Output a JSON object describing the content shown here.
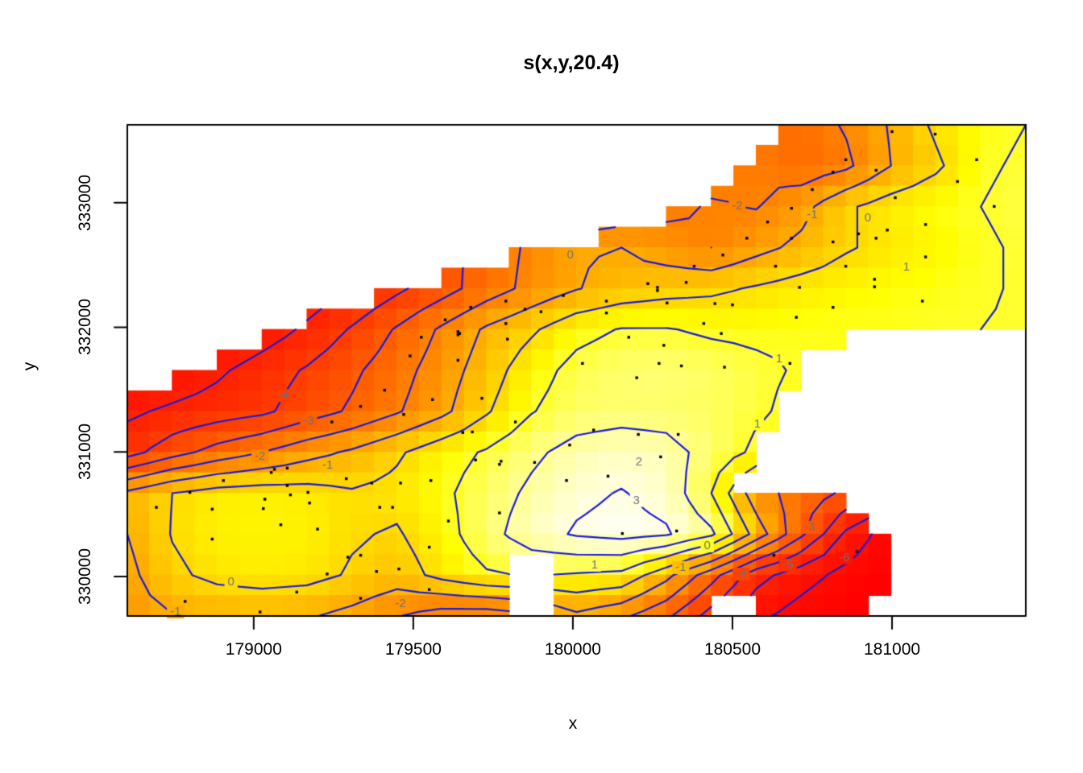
{
  "chart_data": {
    "type": "heatmap",
    "title": "s(x,y,20.4)",
    "xlabel": "x",
    "ylabel": "y",
    "xlim": [
      178604,
      181419
    ],
    "ylim": [
      329683,
      333625
    ],
    "x_ticks": {
      "values": [
        179000,
        179500,
        180000,
        180500,
        181000
      ],
      "labels": [
        "179000",
        "179500",
        "180000",
        "180500",
        "181000"
      ]
    },
    "y_ticks": {
      "values": [
        330000,
        331000,
        332000,
        333000
      ],
      "labels": [
        "330000",
        "331000",
        "332000",
        "333000"
      ]
    },
    "grid": {
      "nx": 21,
      "ny": 13,
      "x0": 178604,
      "x1": 181419,
      "y_top": 333625,
      "y_bottom": 329683,
      "values": [
        [
          -9.0,
          -8.6,
          -8.2,
          -7.8,
          -7.4,
          -7.0,
          -6.6,
          -6.2,
          -5.8,
          -5.4,
          -5.0,
          -4.5,
          -3.8,
          -3.0,
          -2.5,
          -2.5,
          -1.9,
          -0.9,
          0.2,
          0.8,
          1.0
        ],
        [
          -8.8,
          -8.4,
          -8.0,
          -7.6,
          -7.2,
          -6.8,
          -6.3,
          -5.8,
          -5.3,
          -4.8,
          -4.3,
          -3.7,
          -3.0,
          -2.4,
          -2.1,
          -2.6,
          -2.2,
          -1.0,
          -0.2,
          0.9,
          1.1
        ],
        [
          -8.2,
          -7.8,
          -7.4,
          -7.0,
          -6.6,
          -6.2,
          -5.7,
          -5.2,
          -4.7,
          -4.1,
          -3.5,
          -2.9,
          -2.3,
          -1.9,
          -2.05,
          -1.35,
          -0.15,
          0.45,
          0.8,
          1.0,
          1.2
        ],
        [
          -7.0,
          -6.6,
          -6.2,
          -5.8,
          -5.3,
          -4.8,
          -4.2,
          -3.4,
          -2.6,
          -1.8,
          -1.1,
          -1.0,
          -1.5,
          -2.0,
          -1.3,
          -0.75,
          -0.1,
          0.3,
          0.6,
          0.9,
          1.1
        ],
        [
          -7.9,
          -7.4,
          -6.9,
          -6.3,
          -5.7,
          -5.0,
          -4.2,
          -3.4,
          -2.5,
          -1.7,
          -1.05,
          -0.6,
          -0.35,
          -0.2,
          0.1,
          0.4,
          0.6,
          0.75,
          0.85,
          0.95,
          1.05
        ],
        [
          -7.6,
          -7.0,
          -6.3,
          -5.6,
          -4.8,
          -3.9,
          -2.9,
          -1.85,
          -0.85,
          -0.15,
          0.7,
          1.05,
          1.05,
          0.85,
          0.8,
          0.9,
          0.9,
          0.9,
          0.95,
          1.0,
          1.05
        ],
        [
          -6.4,
          -5.8,
          -5.2,
          -4.5,
          -3.9,
          -3.2,
          -2.4,
          -1.5,
          -0.5,
          0.6,
          1.3,
          1.6,
          1.7,
          1.5,
          1.2,
          0.9,
          0.6,
          0.4,
          0.3,
          0.2,
          0.1
        ],
        [
          -5.2,
          -4.8,
          -4.5,
          -4.2,
          -3.5,
          -2.85,
          -2.1,
          -1.25,
          -0.1,
          0.95,
          1.5,
          1.6,
          1.55,
          1.45,
          1.15,
          0.7,
          0.4,
          0.3,
          0.2,
          0.1,
          0.0
        ],
        [
          -4.4,
          -3.4,
          -2.6,
          -2.0,
          -1.35,
          -0.85,
          -0.15,
          0.6,
          1.1,
          1.8,
          2.35,
          2.6,
          2.4,
          1.6,
          0.8,
          0.2,
          -0.6,
          -1.4,
          -2.2,
          -3.0,
          -3.8
        ],
        [
          -0.8,
          0.0,
          0.4,
          0.5,
          0.4,
          0.1,
          0.3,
          0.8,
          1.5,
          2.2,
          2.8,
          3.05,
          2.7,
          1.0,
          -1.6,
          -2.4,
          -3.2,
          -4.0,
          -4.8,
          -5.6,
          -6.4
        ],
        [
          -1.0,
          0.05,
          0.5,
          0.55,
          0.5,
          0.1,
          -0.1,
          0.6,
          1.6,
          2.6,
          3.1,
          3.3,
          3.1,
          2.2,
          -0.4,
          -2.8,
          -5.2,
          -6.6,
          -7.5,
          -8.5,
          -9.5
        ],
        [
          -1.3,
          -0.2,
          0.25,
          0.4,
          0.3,
          -0.1,
          -0.5,
          0.3,
          0.9,
          1.05,
          0.9,
          0.75,
          -0.7,
          -2.6,
          -4.6,
          -5.6,
          -6.3,
          -6.9,
          -7.6,
          -8.3,
          -9.0
        ],
        [
          -1.5,
          -1.05,
          -0.85,
          -0.8,
          -0.9,
          -1.3,
          -1.95,
          -2.5,
          -2.6,
          -2.2,
          -1.2,
          -1.8,
          -2.8,
          -4.4,
          -5.8,
          -6.4,
          -6.8,
          -7.4,
          -8.0,
          -8.6,
          -9.2
        ]
      ]
    },
    "mask_cols": 40,
    "mask_rows": 24,
    "mask": [
      "0000000000000000000000000000011111111111",
      "0000000000000000000000000000111111111111",
      "0000000000000000000000000001111111111111",
      "0000000000000000000000000011111111111111",
      "0000000000000000000000001111111111111111",
      "0000000000000000000001111111111111111111",
      "0000000000000000011111111111111111111111",
      "0000000000000011111111111111111111111111",
      "0000000000011111111111111111111111111111",
      "0000000011111111111111111111111111111111",
      "0000001111111111111111111111111100000000",
      "0000111111111111111111111111110000000000",
      "0011111111111111111111111111110000000000",
      "1111111111111111111111111111100000000000",
      "1111111111111111111111111111100000000000",
      "1111111111111111111111111111000000000000",
      "1111111111111111111111111111000000000000",
      "1111111111111111111111111110000000000000",
      "1111111111111111111111111111111100000000",
      "1111111111111111111111111111111110000000",
      "1111111111111111111111111111111111000000",
      "1111111111111111100111111111111111000000",
      "1111111111111111100111111111111111000000",
      "1111111111111111100111111100111110000000"
    ],
    "contours": {
      "levels": [
        -6,
        -5,
        -4,
        -3,
        -2,
        -1,
        0,
        1,
        2,
        3
      ],
      "line_color": "#1a1ae0",
      "label_color": "#70707a"
    },
    "contour_labels": [
      {
        "text": "-2",
        "x": 180515,
        "y": 332975
      },
      {
        "text": "-1",
        "x": 180750,
        "y": 332903
      },
      {
        "text": "0",
        "x": 180924,
        "y": 332877
      },
      {
        "text": "1",
        "x": 181045,
        "y": 332482
      },
      {
        "text": "0",
        "x": 179992,
        "y": 332579
      },
      {
        "text": "-4",
        "x": 179093,
        "y": 331452
      },
      {
        "text": "-3",
        "x": 179172,
        "y": 331251
      },
      {
        "text": "-2",
        "x": 179020,
        "y": 330966
      },
      {
        "text": "-1",
        "x": 179232,
        "y": 330894
      },
      {
        "text": "1",
        "x": 180646,
        "y": 331743
      },
      {
        "text": "1",
        "x": 180578,
        "y": 331225
      },
      {
        "text": "2",
        "x": 180207,
        "y": 330920
      },
      {
        "text": "3",
        "x": 180199,
        "y": 330609
      },
      {
        "text": "0",
        "x": 178929,
        "y": 329955
      },
      {
        "text": "-1",
        "x": 178755,
        "y": 329715
      },
      {
        "text": "-2",
        "x": 179460,
        "y": 329780
      },
      {
        "text": "1",
        "x": 180068,
        "y": 330091
      },
      {
        "text": "-1",
        "x": 180338,
        "y": 330071
      },
      {
        "text": "0",
        "x": 180421,
        "y": 330246
      },
      {
        "text": "-3",
        "x": 180742,
        "y": 330395
      },
      {
        "text": "-4",
        "x": 180527,
        "y": 330019
      },
      {
        "text": "-5",
        "x": 180674,
        "y": 330091
      },
      {
        "text": "-6",
        "x": 180851,
        "y": 330149
      }
    ],
    "palette": {
      "vmin": -7.2,
      "vmax": 3.4,
      "low": "#ff0000",
      "mid": "#ffff00",
      "high": "#ffffff",
      "na": "#ffffff"
    },
    "point_color": "#000000",
    "points": [
      [
        181000,
        333570
      ],
      [
        181135,
        333550
      ],
      [
        180855,
        333345
      ],
      [
        181265,
        333345
      ],
      [
        180950,
        333260
      ],
      [
        181010,
        333040
      ],
      [
        180750,
        333105
      ],
      [
        181205,
        333170
      ],
      [
        180815,
        333245
      ],
      [
        180685,
        332955
      ],
      [
        180610,
        332845
      ],
      [
        180895,
        332750
      ],
      [
        180985,
        332780
      ],
      [
        180950,
        332715
      ],
      [
        180815,
        332685
      ],
      [
        181320,
        332970
      ],
      [
        181105,
        332825
      ],
      [
        180545,
        332715
      ],
      [
        180685,
        332715
      ],
      [
        180470,
        332580
      ],
      [
        180855,
        332490
      ],
      [
        180635,
        332490
      ],
      [
        180945,
        332385
      ],
      [
        181105,
        332565
      ],
      [
        180380,
        332490
      ],
      [
        180265,
        332320
      ],
      [
        180355,
        332360
      ],
      [
        180500,
        332180
      ],
      [
        180710,
        332320
      ],
      [
        180815,
        332160
      ],
      [
        180945,
        332325
      ],
      [
        181095,
        332210
      ],
      [
        180295,
        332195
      ],
      [
        180445,
        332190
      ],
      [
        180700,
        332080
      ],
      [
        179680,
        332160
      ],
      [
        179600,
        332060
      ],
      [
        179640,
        331940
      ],
      [
        179790,
        332210
      ],
      [
        179850,
        332145
      ],
      [
        179900,
        332125
      ],
      [
        179970,
        332255
      ],
      [
        180105,
        332210
      ],
      [
        180105,
        332115
      ],
      [
        180235,
        332350
      ],
      [
        180265,
        332295
      ],
      [
        179490,
        331770
      ],
      [
        180410,
        332030
      ],
      [
        180465,
        331950
      ],
      [
        179645,
        331950
      ],
      [
        179790,
        332030
      ],
      [
        179795,
        331905
      ],
      [
        180175,
        331920
      ],
      [
        180285,
        331855
      ],
      [
        180030,
        331710
      ],
      [
        180340,
        331690
      ],
      [
        180475,
        331680
      ],
      [
        180200,
        331595
      ],
      [
        180270,
        331710
      ],
      [
        180680,
        331710
      ],
      [
        179715,
        331430
      ],
      [
        179820,
        331240
      ],
      [
        179655,
        331155
      ],
      [
        179775,
        330925
      ],
      [
        179990,
        331055
      ],
      [
        180065,
        331175
      ],
      [
        180205,
        331140
      ],
      [
        180330,
        331140
      ],
      [
        180275,
        330960
      ],
      [
        180110,
        330805
      ],
      [
        179980,
        330770
      ],
      [
        179695,
        330935
      ],
      [
        179245,
        331240
      ],
      [
        179065,
        330860
      ],
      [
        179335,
        331365
      ],
      [
        179410,
        331495
      ],
      [
        179470,
        331300
      ],
      [
        179525,
        331920
      ],
      [
        179640,
        331965
      ],
      [
        179640,
        331735
      ],
      [
        179560,
        331420
      ],
      [
        179685,
        331160
      ],
      [
        178905,
        330770
      ],
      [
        178695,
        330555
      ],
      [
        178870,
        330540
      ],
      [
        179035,
        330620
      ],
      [
        179115,
        330655
      ],
      [
        179105,
        330870
      ],
      [
        179175,
        330590
      ],
      [
        179370,
        330750
      ],
      [
        179435,
        330555
      ],
      [
        179555,
        330770
      ],
      [
        179055,
        330835
      ],
      [
        179105,
        330730
      ],
      [
        179170,
        330675
      ],
      [
        179290,
        330785
      ],
      [
        179395,
        330555
      ],
      [
        179460,
        330750
      ],
      [
        179610,
        330445
      ],
      [
        179550,
        330235
      ],
      [
        179455,
        330060
      ],
      [
        179335,
        330170
      ],
      [
        179295,
        330155
      ],
      [
        179230,
        330020
      ],
      [
        179200,
        330380
      ],
      [
        179085,
        330415
      ],
      [
        179030,
        330545
      ],
      [
        178870,
        330300
      ],
      [
        178800,
        330675
      ],
      [
        178785,
        329800
      ],
      [
        179020,
        329715
      ],
      [
        179135,
        329875
      ],
      [
        179385,
        330040
      ],
      [
        179550,
        329895
      ],
      [
        179335,
        329825
      ],
      [
        179770,
        330900
      ],
      [
        179880,
        330915
      ],
      [
        179770,
        330510
      ],
      [
        180155,
        330345
      ],
      [
        180325,
        330365
      ],
      [
        180630,
        330170
      ],
      [
        180890,
        330200
      ]
    ]
  }
}
